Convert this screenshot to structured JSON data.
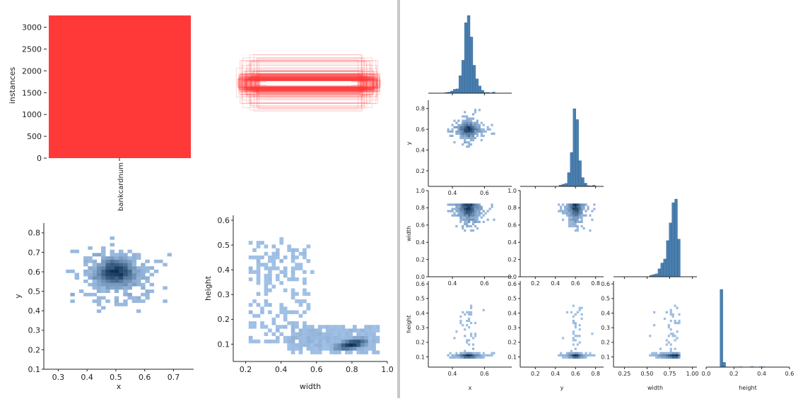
{
  "colors": {
    "bar_red": "#ff3838",
    "hist_blue": "#4a7fb0",
    "hist_edge": "#2c5f8a",
    "heat_light": "#a9c9ee",
    "heat_dark": "#0b2f55"
  },
  "chart_data": [
    {
      "type": "bar",
      "name": "labels",
      "categories": [
        "bankcardnum"
      ],
      "values": [
        3270
      ],
      "ylabel": "instances",
      "ylim": [
        0,
        3300
      ],
      "yticks": [
        "0",
        "500",
        "1000",
        "1500",
        "2000",
        "2500",
        "3000"
      ]
    },
    {
      "type": "boxes",
      "name": "bounding-box-overlay",
      "note_levels": [
        1.0,
        0.8,
        0.6
      ]
    },
    {
      "type": "heatmap",
      "name": "x-vs-y",
      "xlabel": "x",
      "ylabel": "y",
      "xlim": [
        0.25,
        0.77
      ],
      "ylim": [
        0.1,
        0.85
      ],
      "xticks": [
        "0.3",
        "0.4",
        "0.5",
        "0.6",
        "0.7"
      ],
      "yticks": [
        "0.1",
        "0.2",
        "0.3",
        "0.4",
        "0.5",
        "0.6",
        "0.7",
        "0.8"
      ],
      "peak": [
        0.5,
        0.6
      ]
    },
    {
      "type": "heatmap",
      "name": "width-vs-height",
      "xlabel": "width",
      "ylabel": "height",
      "xlim": [
        0.13,
        1.0
      ],
      "ylim": [
        0.03,
        0.62
      ],
      "xticks": [
        "0.2",
        "0.4",
        "0.6",
        "0.8",
        "1.0"
      ],
      "yticks": [
        "0.1",
        "0.2",
        "0.3",
        "0.4",
        "0.5",
        "0.6"
      ],
      "peak": [
        0.8,
        0.1
      ]
    },
    {
      "type": "pairplot",
      "name": "correlogram",
      "variables": [
        "x",
        "y",
        "width",
        "height"
      ],
      "axes": {
        "x": {
          "lim": [
            0.25,
            0.77
          ],
          "ticks": [
            "0.4",
            "0.6"
          ]
        },
        "y": {
          "lim": [
            0.05,
            0.88
          ],
          "ticks": [
            "0.2",
            "0.4",
            "0.6",
            "0.8"
          ]
        },
        "width": {
          "lim": [
            0.13,
            1.05
          ],
          "ticks": [
            "0.25",
            "0.50",
            "0.75",
            "1.00"
          ],
          "row_ticks": [
            "0.0",
            "0.2",
            "0.4",
            "0.6",
            "0.8",
            "1.0"
          ],
          "row_lim": [
            0.0,
            1.0
          ]
        },
        "height": {
          "lim": [
            0.0,
            0.6
          ],
          "ticks": [
            "0.0",
            "0.2",
            "0.4",
            "0.6"
          ],
          "row_ticks": [
            "0.1",
            "0.2",
            "0.3",
            "0.4",
            "0.5",
            "0.6"
          ],
          "row_lim": [
            0.03,
            0.62
          ]
        }
      },
      "diagonal_peaks": {
        "x": 0.5,
        "y": 0.6,
        "width": 0.8,
        "height": 0.1
      }
    }
  ]
}
